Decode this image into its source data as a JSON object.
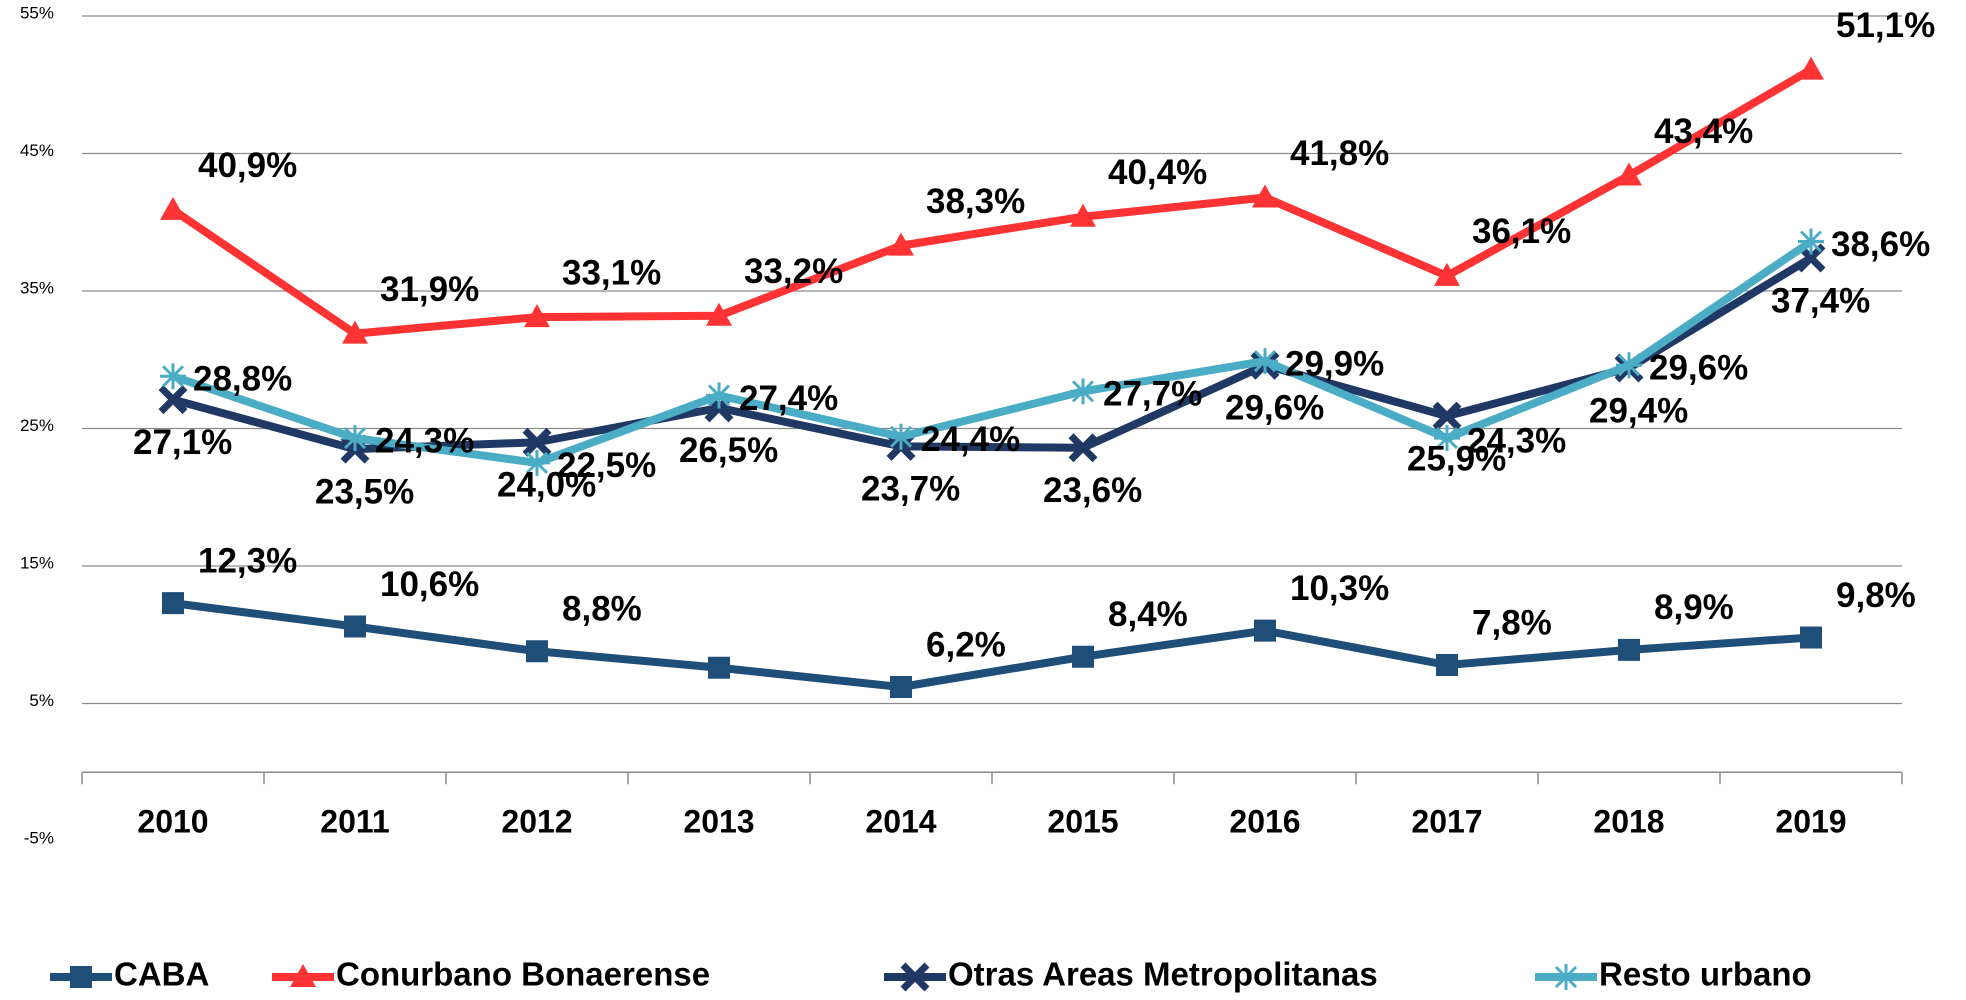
{
  "chart_data": {
    "type": "line",
    "categories": [
      "2010",
      "2011",
      "2012",
      "2013",
      "2014",
      "2015",
      "2016",
      "2017",
      "2018",
      "2019"
    ],
    "series": [
      {
        "name": "CABA",
        "color": "#1f4e79",
        "marker": "square",
        "values": [
          12.3,
          10.6,
          8.8,
          7.6,
          6.2,
          8.4,
          10.3,
          7.8,
          8.9,
          9.8
        ],
        "value_labels": [
          "12,3%",
          "10,6%",
          "8,8%",
          null,
          "6,2%",
          "8,4%",
          "10,3%",
          "7,8%",
          "8,9%",
          "9,8%"
        ]
      },
      {
        "name": "Conurbano Bonaerense",
        "color": "#ff3333",
        "marker": "triangle",
        "values": [
          40.9,
          31.9,
          33.1,
          33.2,
          38.3,
          40.4,
          41.8,
          36.1,
          43.4,
          51.1
        ],
        "value_labels": [
          "40,9%",
          "31,9%",
          "33,1%",
          "33,2%",
          "38,3%",
          "40,4%",
          "41,8%",
          "36,1%",
          "43,4%",
          "51,1%"
        ]
      },
      {
        "name": "Otras Areas Metropolitanas",
        "color": "#1f3864",
        "marker": "x",
        "values": [
          27.1,
          23.5,
          24.0,
          26.5,
          23.7,
          23.6,
          29.6,
          25.9,
          29.4,
          37.4
        ],
        "value_labels": [
          "27,1%",
          "23,5%",
          "24,0%",
          "26,5%",
          "23,7%",
          "23,6%",
          "29,6%",
          "25,9%",
          "29,4%",
          "37,4%"
        ]
      },
      {
        "name": "Resto urbano",
        "color": "#4bacc6",
        "marker": "star",
        "values": [
          28.8,
          24.3,
          22.5,
          27.4,
          24.4,
          27.7,
          29.9,
          24.3,
          29.6,
          38.6
        ],
        "value_labels": [
          "28,8%",
          "24,3%",
          "22,5%",
          "27,4%",
          "24,4%",
          "27,7%",
          "29,9%",
          "24,3%",
          "29,6%",
          "38,6%"
        ]
      }
    ],
    "ylim": [
      -5,
      55
    ],
    "yticks": [
      {
        "value": -5,
        "label": "-5%"
      },
      {
        "value": 5,
        "label": "5%"
      },
      {
        "value": 15,
        "label": "15%"
      },
      {
        "value": 25,
        "label": "25%"
      },
      {
        "value": 35,
        "label": "35%"
      },
      {
        "value": 45,
        "label": "45%"
      },
      {
        "value": 55,
        "label": "55%"
      }
    ],
    "grid": true,
    "legend": "bottom"
  }
}
